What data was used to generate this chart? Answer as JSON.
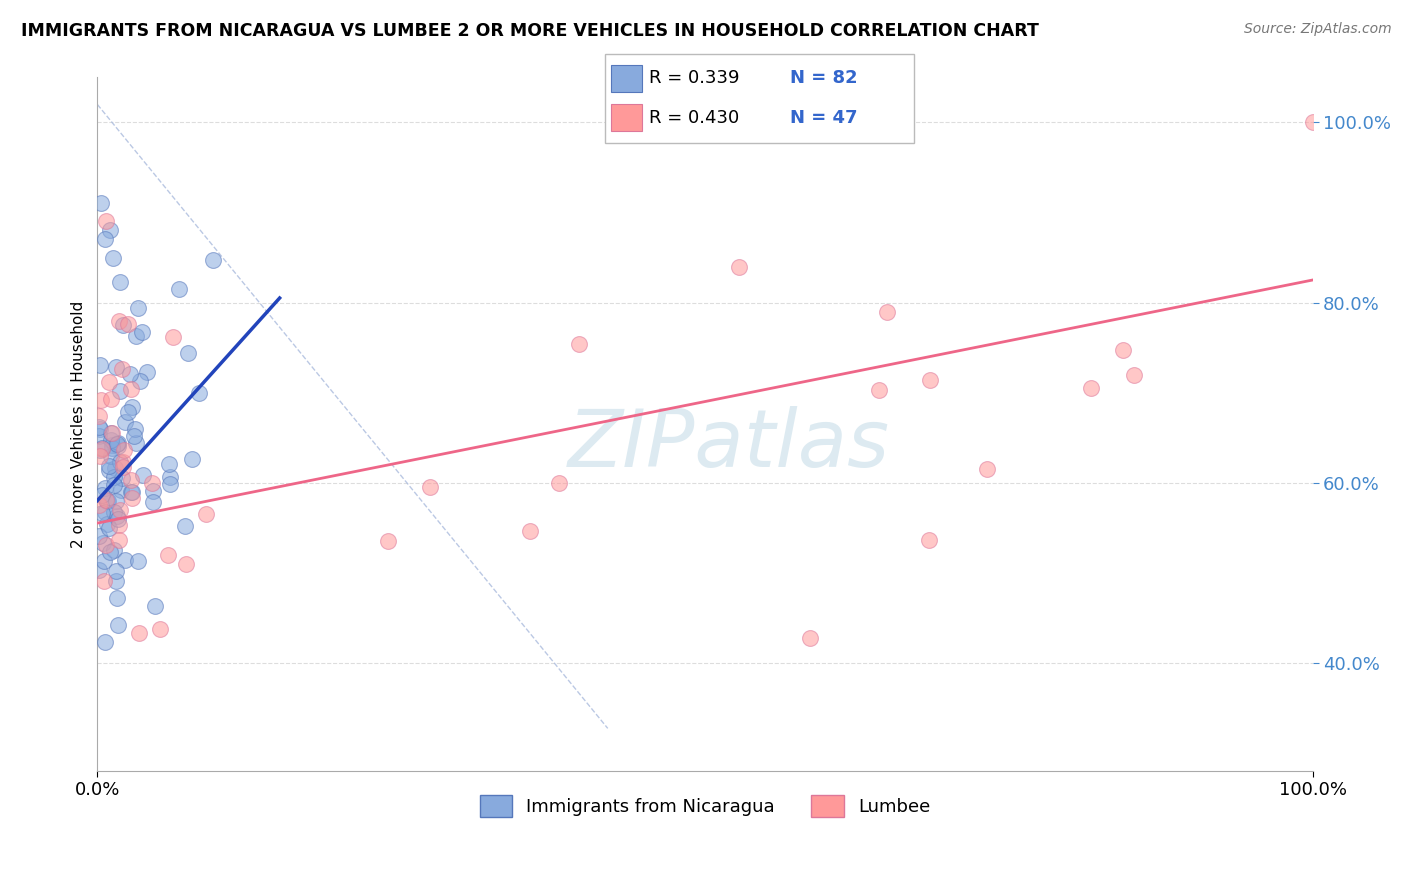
{
  "title": "IMMIGRANTS FROM NICARAGUA VS LUMBEE 2 OR MORE VEHICLES IN HOUSEHOLD CORRELATION CHART",
  "source": "Source: ZipAtlas.com",
  "ylabel": "2 or more Vehicles in Household",
  "series1_color": "#88AADD",
  "series2_color": "#FF9999",
  "series1_edge": "#5577BB",
  "series2_edge": "#DD7799",
  "series1_label": "Immigrants from Nicaragua",
  "series2_label": "Lumbee",
  "series1_R": "0.339",
  "series1_N": "82",
  "series2_R": "0.430",
  "series2_N": "47",
  "blue_line_color": "#2244BB",
  "pink_line_color": "#EE6688",
  "dash_line_color": "#AABBDD",
  "legend_text_color": "#3366CC",
  "ytick_color": "#4488CC",
  "background_color": "#ffffff",
  "grid_color": "#DDDDDD",
  "watermark_color": "#AACCDD"
}
